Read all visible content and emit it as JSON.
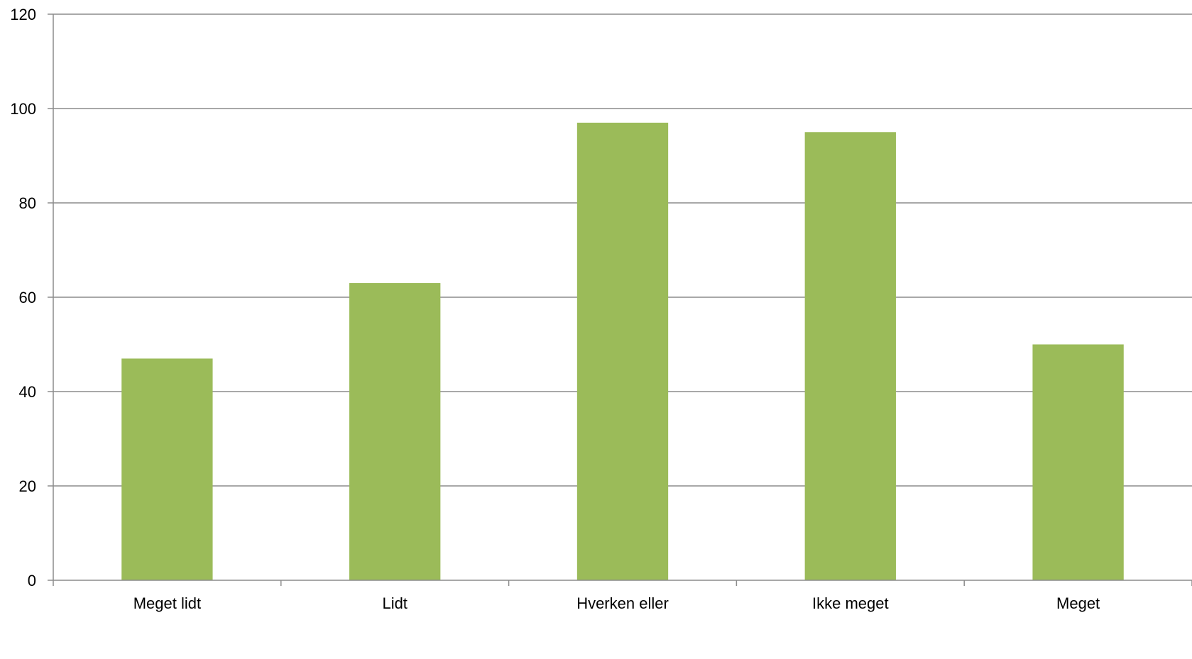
{
  "chart_data": {
    "type": "bar",
    "categories": [
      "Meget lidt",
      "Lidt",
      "Hverken eller",
      "Ikke meget",
      "Meget"
    ],
    "values": [
      47,
      63,
      97,
      95,
      50
    ],
    "ylim": [
      0,
      120
    ],
    "yticks": [
      0,
      20,
      40,
      60,
      80,
      100,
      120
    ],
    "grid": true,
    "legend": "none",
    "colors": {
      "bar": "#9BBB59",
      "grid": "#8C8C8C",
      "axis": "#8C8C8C",
      "text": "#000000"
    }
  }
}
